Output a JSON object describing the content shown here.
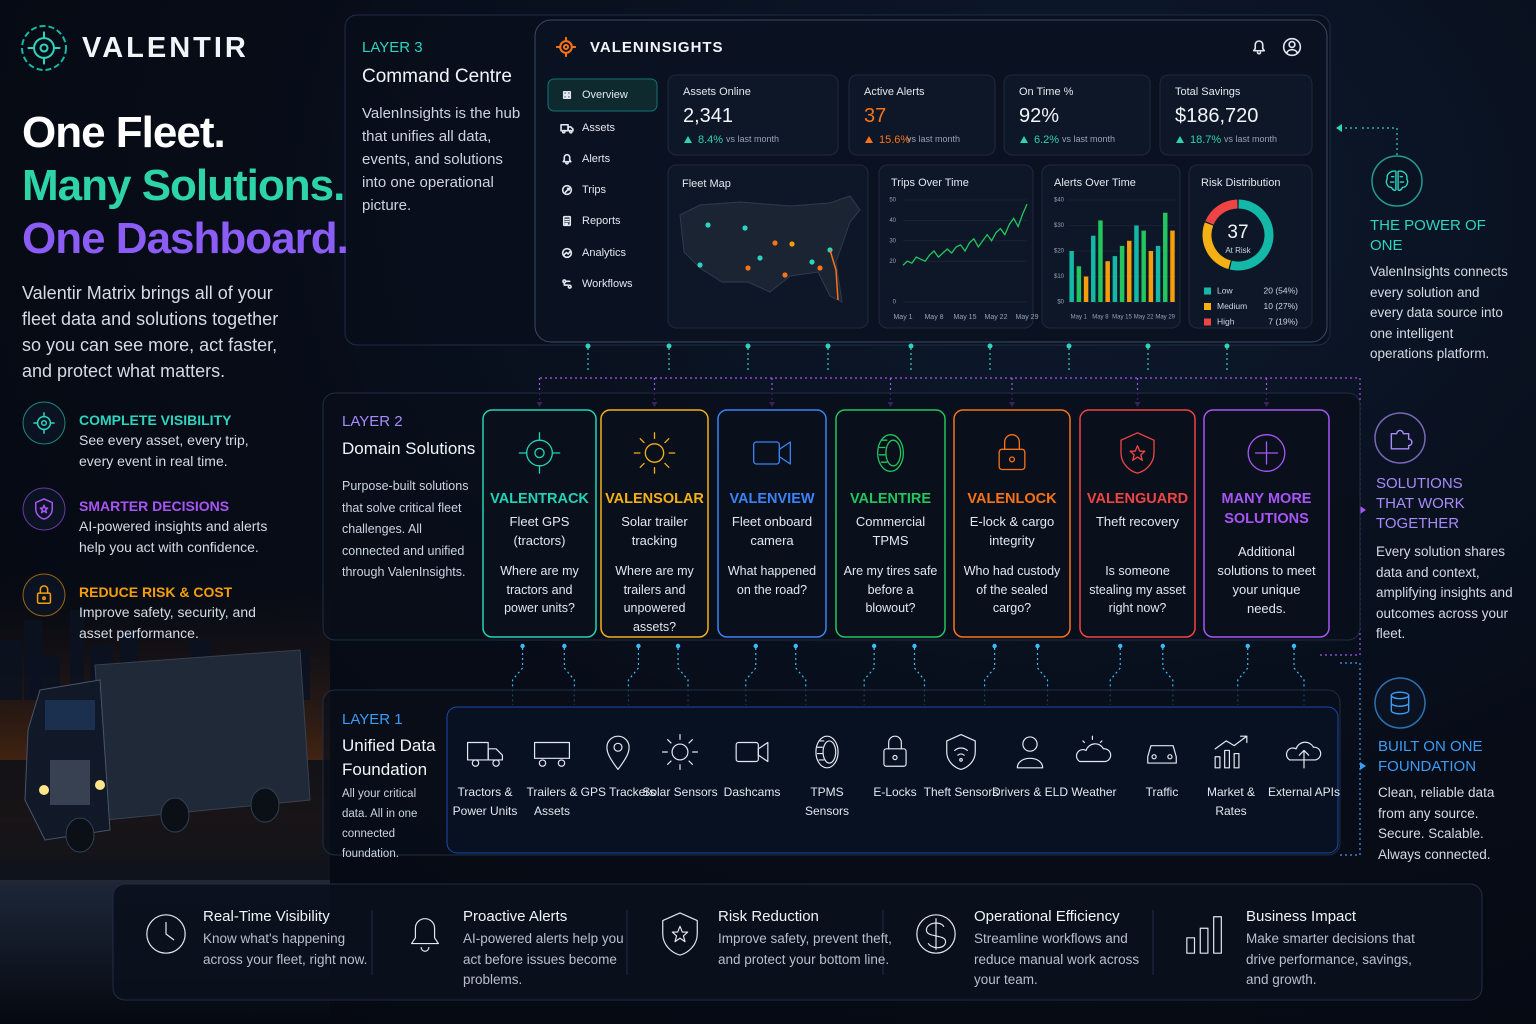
{
  "brand": "VALENTIR",
  "hero": {
    "headline": [
      "One Fleet.",
      "Many Solutions.",
      "One Dashboard."
    ],
    "description": "Valentir Matrix brings all of your fleet data and solutions together so you can see more, act faster, and protect what matters."
  },
  "features": [
    {
      "title": "COMPLETE VISIBILITY",
      "text": "See every asset, every trip, every event in real time.",
      "color": "#2dd4bf"
    },
    {
      "title": "SMARTER DECISIONS",
      "text": "AI-powered insights and alerts help you act with confidence.",
      "color": "#a855f7"
    },
    {
      "title": "REDUCE RISK & COST",
      "text": "Improve safety, security, and asset performance.",
      "color": "#f59e0b"
    }
  ],
  "layer3": {
    "label": "LAYER 3",
    "title": "Command Centre",
    "text": "ValenInsights is the hub that unifies all data, events, and solutions into one operational picture."
  },
  "dashboard": {
    "title": "VALENINSIGHTS",
    "nav": [
      "Overview",
      "Assets",
      "Alerts",
      "Trips",
      "Reports",
      "Analytics",
      "Workflows"
    ],
    "kpis": [
      {
        "label": "Assets Online",
        "value": "2,341",
        "change": "8.4%",
        "note": "vs last month"
      },
      {
        "label": "Active Alerts",
        "value": "37",
        "change": "15.6%",
        "note": "vs last month"
      },
      {
        "label": "On Time %",
        "value": "92%",
        "change": "6.2%",
        "note": "vs last month"
      },
      {
        "label": "Total Savings",
        "value": "$186,720",
        "change": "18.7%",
        "note": "vs last month"
      }
    ],
    "fleet_map": {
      "title": "Fleet Map"
    }
  },
  "chart_data": [
    {
      "type": "line",
      "title": "Trips Over Time",
      "color": "#22c55e",
      "categories": [
        "May 1",
        null,
        null,
        null,
        null,
        null,
        null,
        "May 8",
        null,
        null,
        null,
        null,
        null,
        null,
        "May 15",
        null,
        null,
        null,
        null,
        null,
        null,
        "May 22",
        null,
        null,
        null,
        null,
        null,
        null,
        "May 29"
      ],
      "values": [
        18,
        20,
        19,
        22,
        21,
        20,
        23,
        25,
        22,
        24,
        26,
        24,
        27,
        28,
        25,
        29,
        31,
        27,
        30,
        33,
        30,
        34,
        36,
        33,
        38,
        41,
        37,
        43,
        48
      ],
      "ylim": [
        0,
        50
      ],
      "yticks": [
        0,
        20,
        30,
        40,
        50
      ]
    },
    {
      "type": "bar",
      "title": "Alerts Over Time",
      "categories": [
        "May 1",
        "May 8",
        "May 15",
        "May 22",
        "May 29"
      ],
      "series": [
        {
          "color": "#14b8a6",
          "values": [
            20,
            26,
            18,
            30,
            22
          ]
        },
        {
          "color": "#22c55e",
          "values": [
            14,
            32,
            22,
            28,
            35
          ]
        },
        {
          "color": "#f59e0b",
          "values": [
            10,
            16,
            24,
            20,
            28
          ]
        }
      ],
      "ylim": [
        0,
        40
      ],
      "yticks": [
        {
          "value": 0,
          "label": "$0"
        },
        {
          "value": 10,
          "label": "$10"
        },
        {
          "value": 20,
          "label": "$20"
        },
        {
          "value": 30,
          "label": "$30"
        },
        {
          "value": 40,
          "label": "$40"
        }
      ]
    },
    {
      "type": "pie",
      "title": "Risk Distribution",
      "total": 37,
      "center_label": "At Risk",
      "categories": [
        "Low",
        "Medium",
        "High"
      ],
      "values": [
        20,
        10,
        7
      ],
      "value_labels": [
        "20 (54%)",
        "10 (27%)",
        "7 (19%)"
      ],
      "colors": [
        "#14b8a6",
        "#f5b014",
        "#ef4444"
      ]
    }
  ],
  "layer2": {
    "label": "LAYER 2",
    "title": "Domain Solutions",
    "text": "Purpose-built solutions that solve critical fleet challenges. All connected and unified through ValenInsights.",
    "solutions": [
      {
        "name": "VALENTRACK",
        "subtitle": "Fleet GPS (tractors)",
        "question": "Where are my tractors and power units?",
        "color": "#22d3b5"
      },
      {
        "name": "VALENSOLAR",
        "subtitle": "Solar trailer tracking",
        "question": "Where are my trailers and unpowered assets?",
        "color": "#f5b014"
      },
      {
        "name": "VALENVIEW",
        "subtitle": "Fleet onboard camera",
        "question": "What happened on the road?",
        "color": "#3b82f6"
      },
      {
        "name": "VALENTIRE",
        "subtitle": "Commercial TPMS",
        "question": "Are my tires safe before a blowout?",
        "color": "#22c55e"
      },
      {
        "name": "VALENLOCK",
        "subtitle": "E-lock & cargo integrity",
        "question": "Who had custody of the sealed cargo?",
        "color": "#f97316"
      },
      {
        "name": "VALENGUARD",
        "subtitle": "Theft recovery",
        "question": "Is someone stealing my asset right now?",
        "color": "#ef4444"
      },
      {
        "name": "MANY MORE SOLUTIONS",
        "subtitle": "Additional solutions to meet your unique needs.",
        "color": "#a855f7"
      }
    ]
  },
  "layer1": {
    "label": "LAYER 1",
    "title": "Unified Data Foundation",
    "text": "All your critical data. All in one connected foundation.",
    "sources": [
      "Tractors & Power Units",
      "Trailers & Assets",
      "GPS Trackers",
      "Solar Sensors",
      "Dashcams",
      "TPMS Sensors",
      "E-Locks",
      "Theft Sensors",
      "Drivers & ELD",
      "Weather",
      "Traffic",
      "Market & Rates",
      "External APIs"
    ]
  },
  "callouts": [
    {
      "title": "THE POWER OF ONE",
      "text": "ValenInsights connects every solution and every data source into one intelligent operations platform.",
      "color": "#2dd4bf"
    },
    {
      "title": "SOLUTIONS THAT WORK TOGETHER",
      "text": "Every solution shares data and context, amplifying insights and outcomes across your fleet.",
      "color": "#a78bfa"
    },
    {
      "title": "BUILT ON ONE FOUNDATION",
      "text": "Clean, reliable data from any source. Secure. Scalable. Always connected.",
      "color": "#3b9cf6"
    }
  ],
  "benefits": [
    {
      "title": "Real-Time Visibility",
      "text": "Know what's happening across your fleet, right now."
    },
    {
      "title": "Proactive Alerts",
      "text": "AI-powered alerts help you act before issues become problems."
    },
    {
      "title": "Risk Reduction",
      "text": "Improve safety, prevent theft, and protect your bottom line."
    },
    {
      "title": "Operational Efficiency",
      "text": "Streamline workflows and reduce manual work across your team."
    },
    {
      "title": "Business Impact",
      "text": "Make smarter decisions that drive performance, savings, and growth."
    }
  ]
}
